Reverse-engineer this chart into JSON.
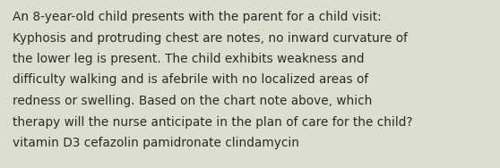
{
  "text_lines": [
    "An 8-year-old child presents with the parent for a child visit:",
    "Kyphosis and protruding chest are notes, no inward curvature of",
    "the lower leg is present. The child exhibits weakness and",
    "difficulty walking and is afebrile with no localized areas of",
    "redness or swelling. Based on the chart note above, which",
    "therapy will the nurse anticipate in the plan of care for the child?",
    "vitamin D3 cefazolin pamidronate clindamycin"
  ],
  "background_color": "#ddddd0",
  "text_color": "#2a2a2a",
  "font_size": 9.8,
  "font_family": "DejaVu Sans"
}
